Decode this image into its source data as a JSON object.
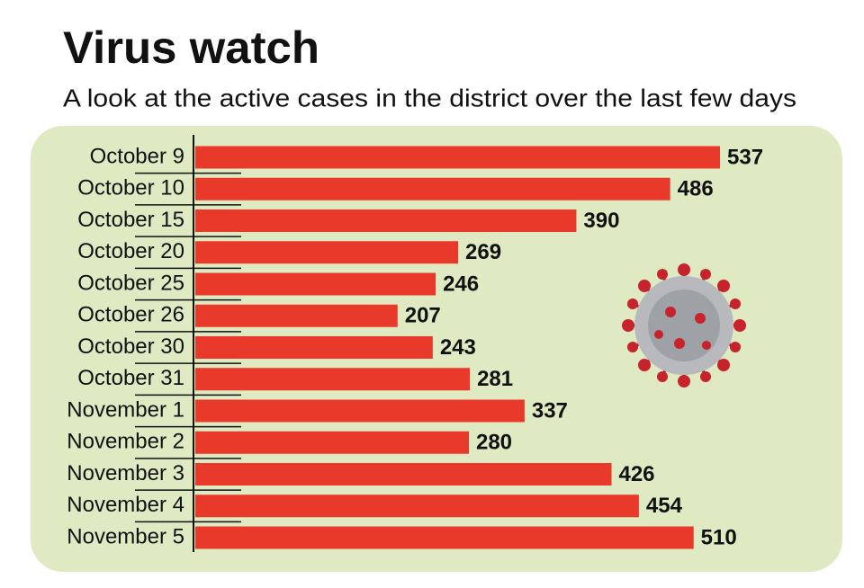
{
  "chart_data": {
    "type": "bar",
    "orientation": "horizontal",
    "title": "Virus watch",
    "subtitle": "A look at the active cases in the district over the last few days",
    "categories": [
      "October 9",
      "October 10",
      "October 15",
      "October 20",
      "October 25",
      "October 26",
      "October 30",
      "October 31",
      "November 1",
      "November 2",
      "November 3",
      "November 4",
      "November 5"
    ],
    "values": [
      537,
      486,
      390,
      269,
      246,
      207,
      243,
      281,
      337,
      280,
      426,
      454,
      510
    ],
    "color": "#e8392b"
  }
}
